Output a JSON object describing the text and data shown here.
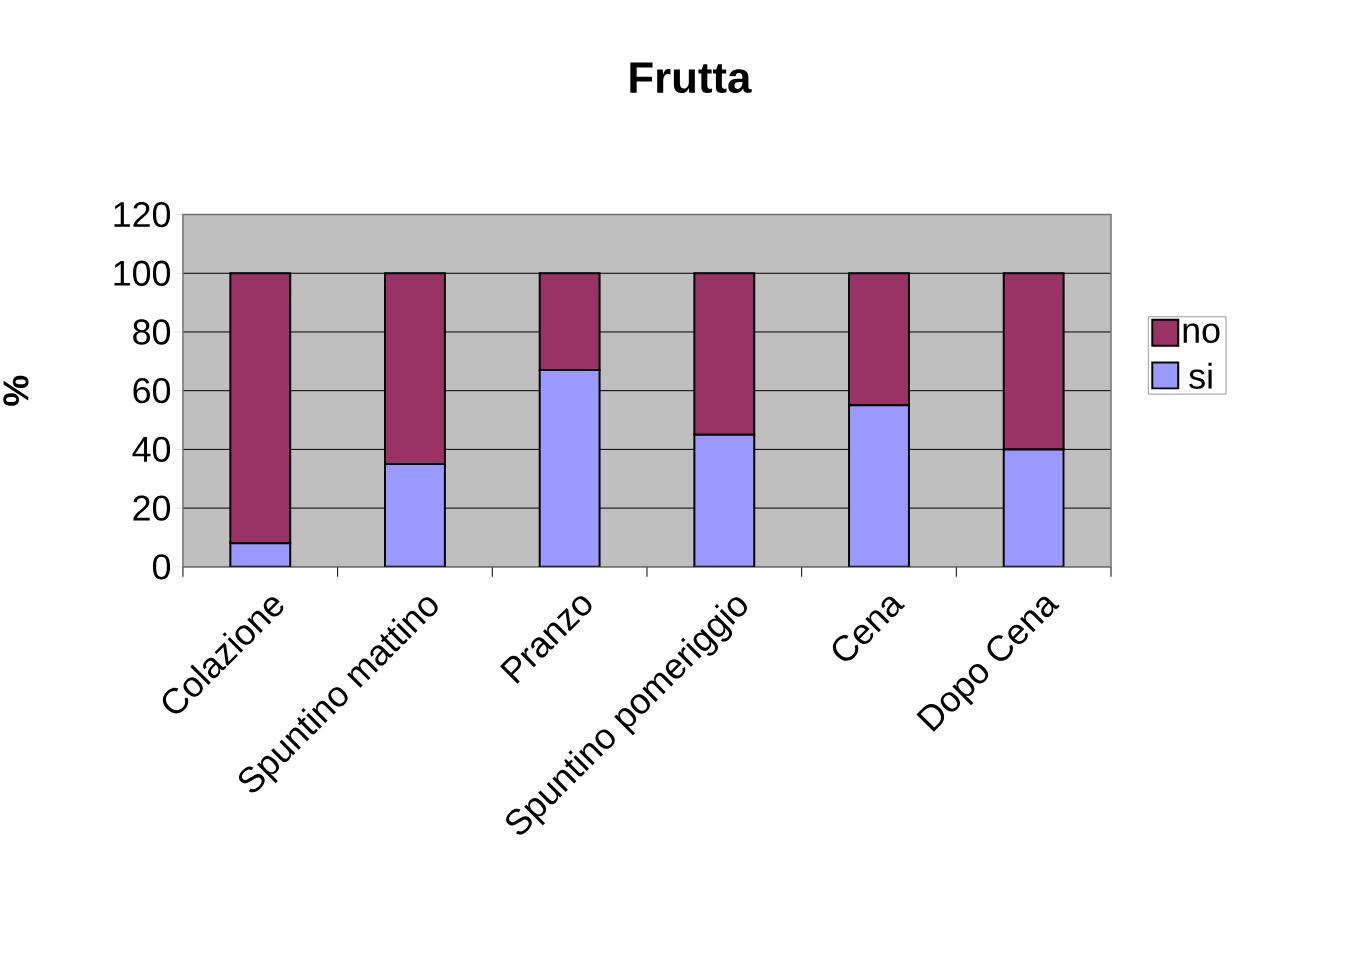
{
  "chart_data": {
    "type": "bar",
    "title": "Frutta",
    "ylabel": "%",
    "categories": [
      "Colazione",
      "Spuntino mattino",
      "Pranzo",
      "Spuntino pomeriggio",
      "Cena",
      "Dopo Cena"
    ],
    "series": [
      {
        "name": "si",
        "color": "#9999ff",
        "values": [
          8,
          35,
          67,
          45,
          55,
          40
        ]
      },
      {
        "name": "no",
        "color": "#993366",
        "values": [
          92,
          65,
          33,
          55,
          45,
          60
        ]
      }
    ],
    "stacked": true,
    "ylim": [
      0,
      120
    ],
    "yticks": [
      0,
      20,
      40,
      60,
      80,
      100,
      120
    ],
    "grid": "y",
    "legend": "right"
  }
}
